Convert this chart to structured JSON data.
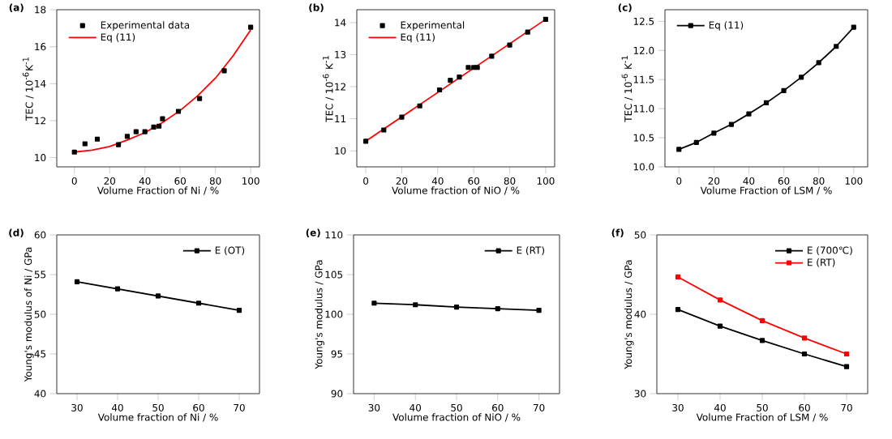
{
  "chart_data": [
    {
      "type": "scatter",
      "title": "(a)",
      "xlabel": "Volume Fraction of Ni / %",
      "ylabel": "TEC / 10$^{-6}$K$^{-1}$",
      "xlim": [
        -10,
        105
      ],
      "ylim": [
        9.5,
        18
      ],
      "xticks": [
        0,
        20,
        40,
        60,
        80,
        100
      ],
      "yticks": [
        10,
        12,
        14,
        16,
        18
      ],
      "legend": "top left",
      "series": [
        {
          "name": "Experimental data",
          "type": "scatter",
          "marker": "square",
          "color": "#000000",
          "x": [
            0,
            6,
            13,
            25,
            30,
            35,
            40,
            45,
            48,
            50,
            59,
            71,
            85,
            100
          ],
          "values": [
            10.3,
            10.75,
            11.0,
            10.7,
            11.15,
            11.4,
            11.4,
            11.65,
            11.7,
            12.1,
            12.5,
            13.2,
            14.7,
            17.05
          ]
        },
        {
          "name": "Eq (11)",
          "type": "line",
          "marker": "none",
          "color": "#ff0000",
          "x": [
            0,
            10,
            20,
            30,
            40,
            50,
            60,
            70,
            80,
            90,
            100
          ],
          "values": [
            10.3,
            10.4,
            10.6,
            10.95,
            11.35,
            11.9,
            12.55,
            13.35,
            14.3,
            15.5,
            16.9
          ]
        }
      ]
    },
    {
      "type": "scatter",
      "title": "(b)",
      "xlabel": "Volume fraction of NiO / %",
      "ylabel": "TEC / 10$^{-6}$ K$^{-1}$",
      "xlim": [
        -5,
        105
      ],
      "ylim": [
        9.5,
        14.4
      ],
      "xticks": [
        0,
        20,
        40,
        60,
        80,
        100
      ],
      "yticks": [
        10,
        11,
        12,
        13,
        14
      ],
      "legend": "top left",
      "series": [
        {
          "name": "Experimental",
          "type": "scatter",
          "marker": "square",
          "color": "#000000",
          "x": [
            0,
            10,
            20,
            30,
            41,
            47,
            52,
            57,
            60,
            62,
            70,
            80,
            90,
            100
          ],
          "values": [
            10.3,
            10.65,
            11.05,
            11.4,
            11.9,
            12.2,
            12.3,
            12.6,
            12.6,
            12.6,
            12.95,
            13.3,
            13.7,
            14.1
          ]
        },
        {
          "name": "Eq (11)",
          "type": "line",
          "marker": "none",
          "color": "#ff0000",
          "x": [
            0,
            100
          ],
          "values": [
            10.3,
            14.1
          ]
        }
      ]
    },
    {
      "type": "line",
      "title": "(c)",
      "xlabel": "Volume Fraction of LSM / %",
      "ylabel": "TEC / 10$^{-6}$ K$^{-1}$",
      "xlim": [
        -8,
        108
      ],
      "ylim": [
        10,
        12.7
      ],
      "xticks": [
        0,
        20,
        40,
        60,
        80,
        100
      ],
      "yticks": [
        {
          "value": 10,
          "label": "10.0"
        },
        10.5,
        {
          "value": 11,
          "label": "11.0"
        },
        11.5,
        {
          "value": 12,
          "label": "12.0"
        },
        12.5
      ],
      "legend": "top left",
      "series": [
        {
          "name": "Eq (11)",
          "marker": "square",
          "color": "#000000",
          "x": [
            0,
            10,
            20,
            30,
            40,
            50,
            60,
            70,
            80,
            90,
            100
          ],
          "values": [
            10.3,
            10.42,
            10.58,
            10.73,
            10.91,
            11.1,
            11.31,
            11.54,
            11.79,
            12.07,
            12.4
          ]
        }
      ]
    },
    {
      "type": "line",
      "title": "(d)",
      "xlabel": "Volume fraction of Ni / %",
      "ylabel": "Young's modulus of Ni / GPa",
      "xlim": [
        25,
        75
      ],
      "ylim": [
        40,
        60
      ],
      "xticks": [
        30,
        40,
        50,
        60,
        70
      ],
      "yticks": [
        40,
        45,
        50,
        55,
        60
      ],
      "legend": "top right",
      "series": [
        {
          "name": "E (OT)",
          "marker": "square",
          "color": "#000000",
          "x": [
            30,
            40,
            50,
            60,
            70
          ],
          "values": [
            54.1,
            53.2,
            52.3,
            51.4,
            50.5
          ]
        }
      ]
    },
    {
      "type": "line",
      "title": "(e)",
      "xlabel": "Volume fraction of NiO / %",
      "ylabel": "Young's modulus / GPa",
      "xlim": [
        25,
        75
      ],
      "ylim": [
        90,
        110
      ],
      "xticks": [
        30,
        40,
        50,
        60,
        70
      ],
      "yticks": [
        90,
        95,
        100,
        105,
        110
      ],
      "legend": "top right",
      "series": [
        {
          "name": "E (RT)",
          "marker": "square",
          "color": "#000000",
          "x": [
            30,
            40,
            50,
            60,
            70
          ],
          "values": [
            101.4,
            101.2,
            100.9,
            100.7,
            100.5
          ]
        }
      ]
    },
    {
      "type": "line",
      "title": "(f)",
      "xlabel": "Volume Fraction of LSM / %",
      "ylabel": "Young's modulus / GPa",
      "xlim": [
        25,
        75
      ],
      "ylim": [
        30,
        50
      ],
      "xticks": [
        30,
        40,
        50,
        60,
        70
      ],
      "yticks": [
        30,
        40,
        50
      ],
      "legend": "top right",
      "series": [
        {
          "name": "E (700℃)",
          "marker": "square",
          "color": "#000000",
          "x": [
            30,
            40,
            50,
            60,
            70
          ],
          "values": [
            40.6,
            38.5,
            36.7,
            35.0,
            33.4
          ]
        },
        {
          "name": "E (RT)",
          "marker": "square",
          "color": "#ff0000",
          "x": [
            30,
            40,
            50,
            60,
            70
          ],
          "values": [
            44.7,
            41.8,
            39.2,
            37.0,
            35.0
          ]
        }
      ]
    }
  ]
}
